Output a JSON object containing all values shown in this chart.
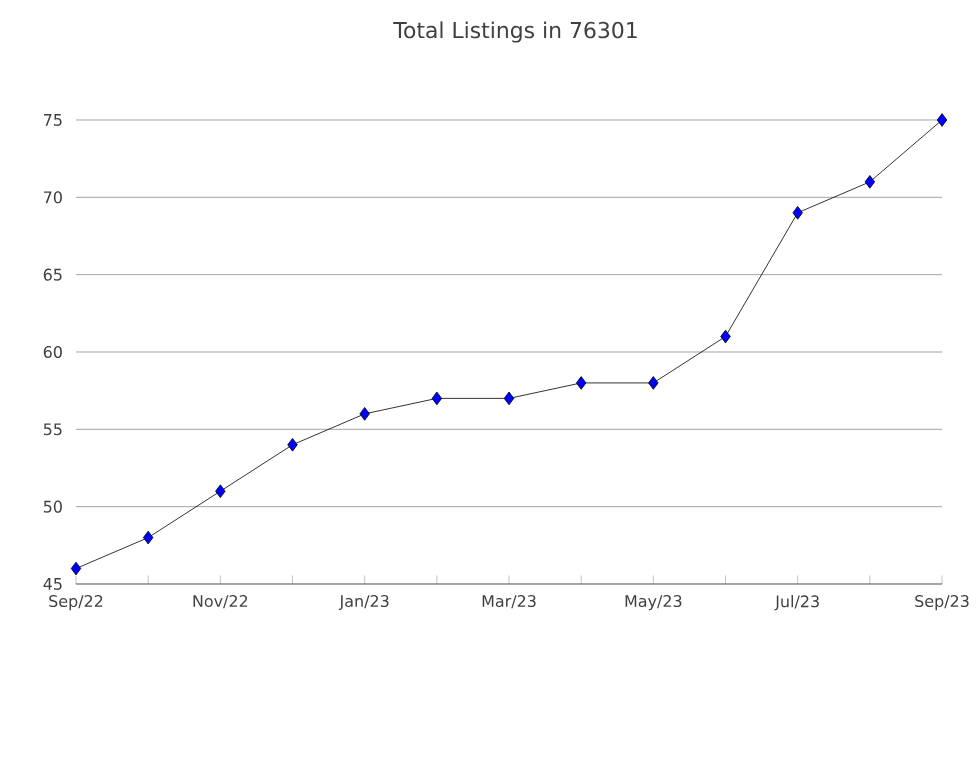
{
  "chart_data": {
    "type": "line",
    "title": "Total Listings in 76301",
    "categories": [
      "Sep/22",
      null,
      "Nov/22",
      null,
      "Jan/23",
      null,
      "Mar/23",
      null,
      "May/23",
      null,
      "Jul/23",
      null,
      "Sep/23"
    ],
    "series": [
      {
        "color": "#0000ff",
        "values": [
          46,
          48,
          51,
          54,
          56,
          57,
          57,
          58,
          58,
          61,
          69,
          71,
          75
        ]
      }
    ],
    "ylim": [
      45,
      75
    ],
    "yticks": [
      45,
      50,
      55,
      60,
      65,
      70,
      75
    ],
    "grid": "y",
    "marker": "diamond",
    "line_style": "solid"
  }
}
